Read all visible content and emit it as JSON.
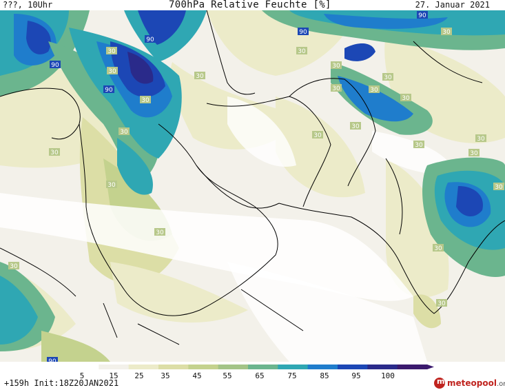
{
  "header": {
    "left": "???, 10Uhr",
    "title": "700hPa Relative Feuchte [%]",
    "date": "27. Januar 2021"
  },
  "map": {
    "contour_labels": [
      "90",
      "90",
      "90",
      "90",
      "30",
      "30",
      "30",
      "30",
      "30",
      "30",
      "30",
      "30",
      "90",
      "90",
      "30",
      "30",
      "30",
      "30",
      "30",
      "30",
      "30",
      "30",
      "30",
      "30",
      "30",
      "30",
      "30",
      "30",
      "30",
      "30"
    ]
  },
  "colorbar": {
    "ticks": [
      "5",
      "15",
      "25",
      "35",
      "45",
      "55",
      "65",
      "75",
      "85",
      "95",
      "100"
    ],
    "colors": [
      "#ffffff",
      "#f3f1ea",
      "#ecebc9",
      "#dcdea6",
      "#c4d28e",
      "#a3c487",
      "#6bb58e",
      "#2fa7b3",
      "#1f7dcc",
      "#1c47b5",
      "#2a2a8a",
      "#3b1a6e"
    ]
  },
  "footer": {
    "run_info": "+159h  Init:18Z20JAN2021",
    "logo_letter": "m",
    "logo_main": "meteopool",
    "logo_suffix": ".org"
  }
}
